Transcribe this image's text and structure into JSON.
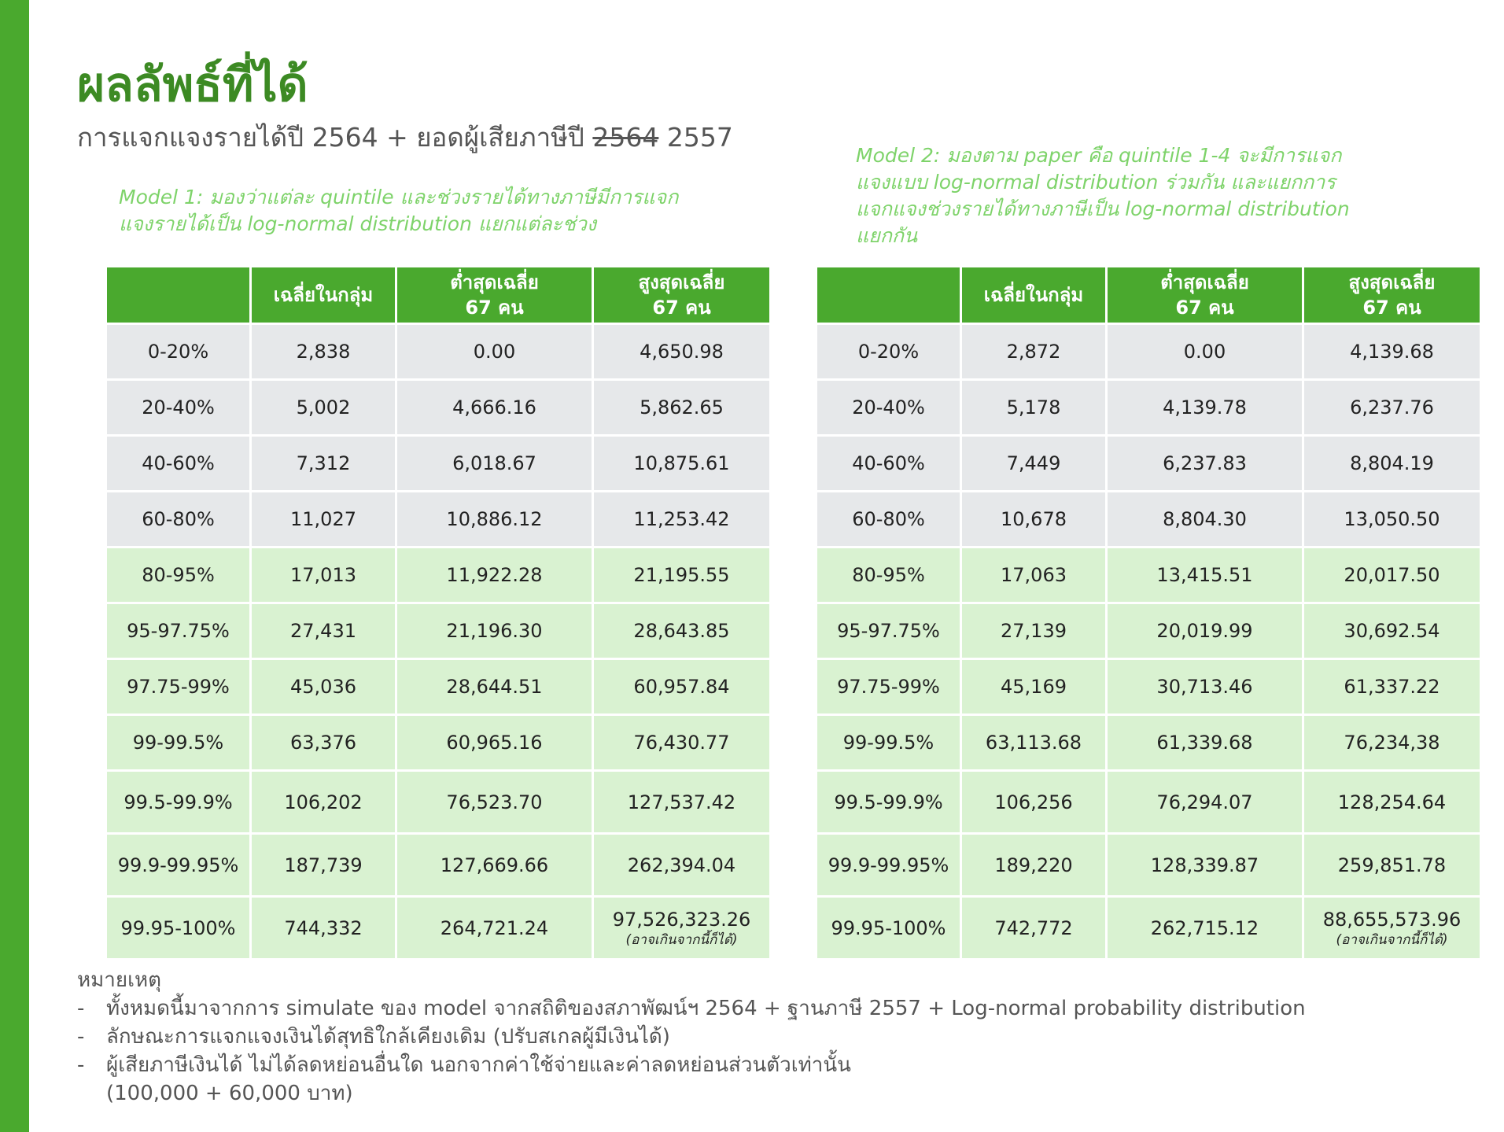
{
  "title": "ผลลัพธ์ที่ได้",
  "subtitle": {
    "prefix": "การแจกแจงรายได้ปี 2564 + ยอดผู้เสียภาษีปี",
    "struck_year": "2564",
    "year": "2557"
  },
  "model1_note": "Model 1: มองว่าแต่ละ quintile และช่วงรายได้ทางภาษีมีการแจก\nแจงรายได้เป็น log-normal distribution แยกแต่ละช่วง",
  "model2_note": "Model 2: มองตาม paper คือ quintile 1-4 จะมีการแจก\nแจงแบบ log-normal distribution ร่วมกัน และแยกการ\nแจกแจงช่วงรายได้ทางภาษีเป็น log-normal distribution\nแยกกัน",
  "columns": [
    "",
    "เฉลี่ยในกลุ่ม",
    "ต่ำสุดเฉลี่ย\n67 คน",
    "สูงสุดเฉลี่ย\n67 คน"
  ],
  "table1": {
    "rows": [
      {
        "range": "0-20%",
        "mean": "2,838",
        "min": "0.00",
        "max": "4,650.98"
      },
      {
        "range": "20-40%",
        "mean": "5,002",
        "min": "4,666.16",
        "max": "5,862.65"
      },
      {
        "range": "40-60%",
        "mean": "7,312",
        "min": "6,018.67",
        "max": "10,875.61"
      },
      {
        "range": "60-80%",
        "mean": "11,027",
        "min": "10,886.12",
        "max": "11,253.42"
      },
      {
        "range": "80-95%",
        "mean": "17,013",
        "min": "11,922.28",
        "max": "21,195.55"
      },
      {
        "range": "95-97.75%",
        "mean": "27,431",
        "min": "21,196.30",
        "max": "28,643.85"
      },
      {
        "range": "97.75-99%",
        "mean": "45,036",
        "min": "28,644.51",
        "max": "60,957.84"
      },
      {
        "range": "99-99.5%",
        "mean": "63,376",
        "min": "60,965.16",
        "max": "76,430.77"
      },
      {
        "range": "99.5-99.9%",
        "mean": "106,202",
        "min": "76,523.70",
        "max": "127,537.42"
      },
      {
        "range": "99.9-99.95%",
        "mean": "187,739",
        "min": "127,669.66",
        "max": "262,394.04"
      },
      {
        "range": "99.95-100%",
        "mean": "744,332",
        "min": "264,721.24",
        "max": "97,526,323.26",
        "max_note": "(อาจเกินจากนี้ก็ได้)"
      }
    ]
  },
  "table2": {
    "rows": [
      {
        "range": "0-20%",
        "mean": "2,872",
        "min": "0.00",
        "max": "4,139.68"
      },
      {
        "range": "20-40%",
        "mean": "5,178",
        "min": "4,139.78",
        "max": "6,237.76"
      },
      {
        "range": "40-60%",
        "mean": "7,449",
        "min": "6,237.83",
        "max": "8,804.19"
      },
      {
        "range": "60-80%",
        "mean": "10,678",
        "min": "8,804.30",
        "max": "13,050.50"
      },
      {
        "range": "80-95%",
        "mean": "17,063",
        "min": "13,415.51",
        "max": "20,017.50"
      },
      {
        "range": "95-97.75%",
        "mean": "27,139",
        "min": "20,019.99",
        "max": "30,692.54"
      },
      {
        "range": "97.75-99%",
        "mean": "45,169",
        "min": "30,713.46",
        "max": "61,337.22"
      },
      {
        "range": "99-99.5%",
        "mean": "63,113.68",
        "min": "61,339.68",
        "max": "76,234,38"
      },
      {
        "range": "99.5-99.9%",
        "mean": "106,256",
        "min": "76,294.07",
        "max": "128,254.64"
      },
      {
        "range": "99.9-99.95%",
        "mean": "189,220",
        "min": "128,339.87",
        "max": "259,851.78"
      },
      {
        "range": "99.95-100%",
        "mean": "742,772",
        "min": "262,715.12",
        "max": "88,655,573.96",
        "max_note": "(อาจเกินจากนี้ก็ได้)"
      }
    ]
  },
  "notes": {
    "heading": "หมายเหตุ",
    "items": [
      "ทั้งหมดนี้มาจากการ simulate ของ model จากสถิติของสภาพัฒน์ฯ 2564 + ฐานภาษี 2557 + Log-normal probability distribution",
      "ลักษณะการแจกแจงเงินได้สุทธิใกล้เคียงเดิม (ปรับสเกลผู้มีเงินได้)",
      "ผู้เสียภาษีเงินได้ ไม่ได้ลดหย่อนอื่นใด นอกจากค่าใช้จ่ายและค่าลดหย่อนส่วนตัวเท่านั้น"
    ],
    "continuation": "(100,000 + 60,000 บาท)",
    "dash": "-"
  },
  "colors": {
    "accent_bar": "#4aa92e",
    "title": "#3c8a23",
    "note_text": "#7ed36a",
    "header_bg": "#4aa92e",
    "row_gray": "#e6e8ea",
    "row_green": "#d9f2d1"
  }
}
